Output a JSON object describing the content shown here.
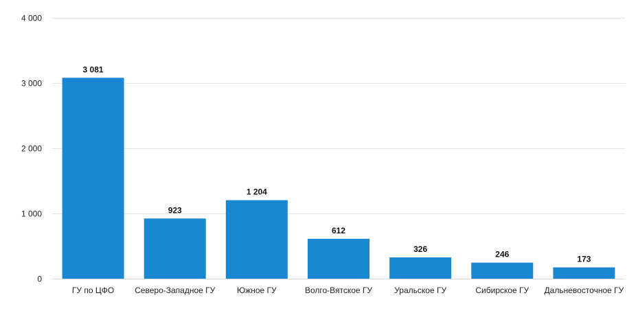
{
  "chart_data": {
    "type": "bar",
    "title": "",
    "xlabel": "",
    "ylabel": "",
    "categories": [
      "ГУ по ЦФО",
      "Северо-Западное ГУ",
      "Южное ГУ",
      "Волго-Вятское ГУ",
      "Уральское ГУ",
      "Сибирское ГУ",
      "Дальневосточное ГУ"
    ],
    "values": [
      3081,
      923,
      1204,
      612,
      326,
      246,
      173
    ],
    "value_labels": [
      "3 081",
      "923",
      "1 204",
      "612",
      "326",
      "246",
      "173"
    ],
    "ylim": [
      0,
      4000
    ],
    "yticks": [
      0,
      1000,
      2000,
      3000,
      4000
    ],
    "ytick_labels": [
      "0",
      "1 000",
      "2 000",
      "3 000",
      "4 000"
    ],
    "grid": true,
    "legend": "none",
    "bar_color": "#1987d1"
  }
}
